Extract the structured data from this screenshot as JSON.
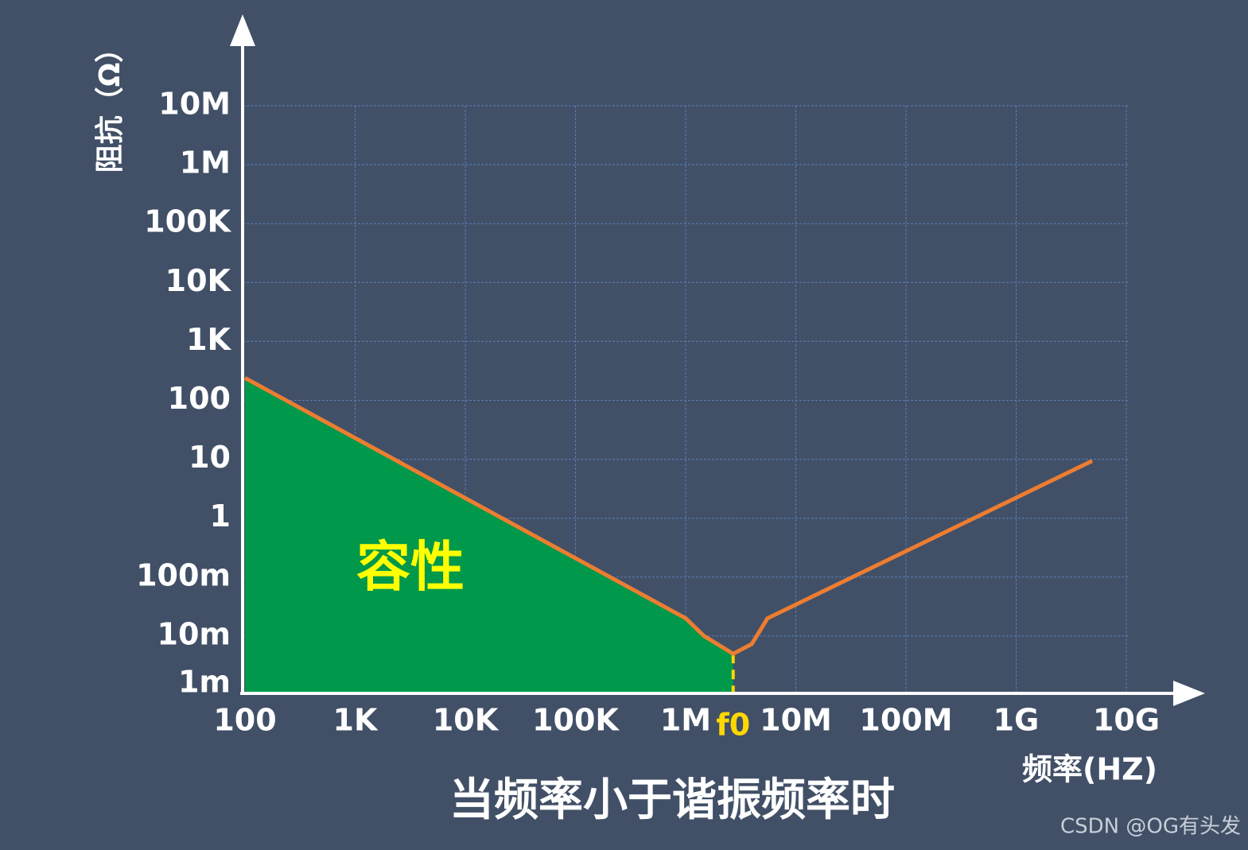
{
  "chart_data": {
    "type": "line",
    "title": "当频率小于谐振频率时",
    "x_label": "频率(HZ)",
    "y_label": "阻抗（Ω）",
    "x_scale": "log",
    "y_scale": "log",
    "grid": true,
    "xlim": [
      100,
      10000000000
    ],
    "ylim": [
      0.001,
      10000000
    ],
    "xticks": [
      100,
      {
        "value": 1000,
        "label": "1K"
      },
      {
        "value": 10000,
        "label": "10K"
      },
      {
        "value": 100000,
        "label": "100K"
      },
      {
        "value": 1000000,
        "label": "1M"
      },
      {
        "value": 10000000,
        "label": "10M"
      },
      {
        "value": 100000000,
        "label": "100M"
      },
      {
        "value": 1000000000,
        "label": "1G"
      },
      {
        "value": 10000000000,
        "label": "10G"
      }
    ],
    "yticks": [
      {
        "value": 0.001,
        "label": "1m"
      },
      {
        "value": 0.01,
        "label": "10m"
      },
      {
        "value": 0.1,
        "label": "100m"
      },
      1,
      10,
      100,
      {
        "value": 1000,
        "label": "1K"
      },
      {
        "value": 10000,
        "label": "10K"
      },
      {
        "value": 100000,
        "label": "100K"
      },
      {
        "value": 1000000,
        "label": "1M"
      },
      {
        "value": 10000000,
        "label": "10M"
      }
    ],
    "series": [
      {
        "name": "阻抗",
        "color": "#ed7d31",
        "x": [
          100,
          1000000,
          1470000,
          2700000,
          3980000,
          5540000,
          4900000000
        ],
        "values": [
          240,
          0.02,
          0.01,
          0.005,
          0.0073,
          0.02,
          9.4
        ]
      }
    ],
    "area": {
      "label": "容性",
      "color": "#00984a",
      "label_color": "#ffff00"
    },
    "f0": {
      "label": "f0",
      "x": 2700000,
      "color": "#ffd700"
    },
    "watermark": "CSDN @OG有头发"
  }
}
